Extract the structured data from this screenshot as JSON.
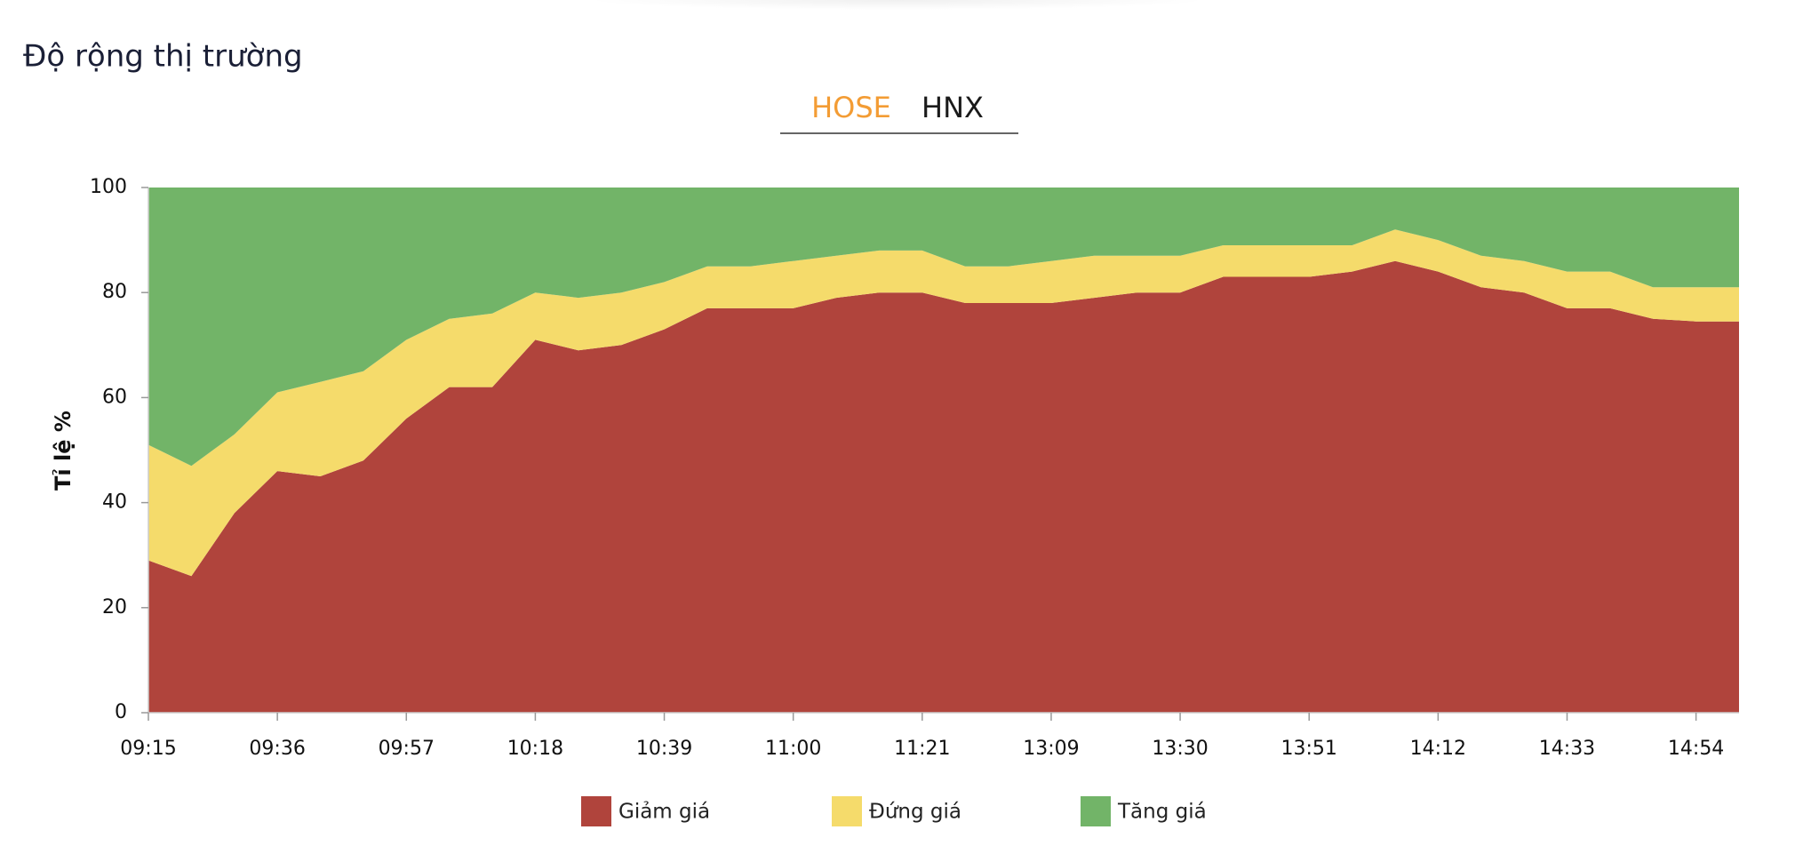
{
  "header": {
    "title": "Độ rộng thị trường"
  },
  "tabs": [
    {
      "label": "HOSE",
      "active": true
    },
    {
      "label": "HNX",
      "active": false
    }
  ],
  "chart_data": {
    "type": "stacked-area",
    "y_label": "Tỉ lệ %",
    "categories": [
      "09:15",
      null,
      null,
      "09:36",
      null,
      null,
      "09:57",
      null,
      null,
      "10:18",
      null,
      null,
      "10:39",
      null,
      null,
      "11:00",
      null,
      null,
      "11:21",
      null,
      null,
      "13:09",
      null,
      null,
      "13:30",
      null,
      null,
      "13:51",
      null,
      null,
      "14:12",
      null,
      null,
      "14:33",
      null,
      null,
      "14:54",
      null
    ],
    "series": [
      {
        "name": "Giảm giá",
        "color": "#b0443c",
        "values": [
          29,
          26,
          38,
          46,
          45,
          48,
          56,
          62,
          62,
          71,
          69,
          70,
          73,
          77,
          77,
          77,
          79,
          80,
          80,
          78,
          78,
          78,
          79,
          80,
          80,
          83,
          83,
          83,
          84,
          86,
          84,
          81,
          80,
          77,
          77,
          75,
          74.5,
          74.5
        ]
      },
      {
        "name": "Đứng giá",
        "color": "#f5db6b",
        "values": [
          22,
          21,
          15,
          15,
          18,
          17,
          15,
          13,
          14,
          9,
          10,
          10,
          9,
          8,
          8,
          9,
          8,
          8,
          8,
          7,
          7,
          8,
          8,
          7,
          7,
          6,
          6,
          6,
          5,
          6,
          6,
          6,
          6,
          7,
          7,
          6,
          6.5,
          6.5
        ]
      },
      {
        "name": "Tăng giá",
        "color": "#72b468",
        "values": [
          49,
          53,
          47,
          39,
          37,
          35,
          29,
          25,
          24,
          20,
          21,
          20,
          18,
          15,
          15,
          14,
          13,
          12,
          12,
          15,
          15,
          14,
          13,
          13,
          13,
          11,
          11,
          11,
          11,
          8,
          10,
          13,
          14,
          16,
          16,
          19,
          19,
          19
        ]
      }
    ],
    "ylim": [
      0,
      100
    ],
    "yticks": [
      0,
      20,
      40,
      60,
      80,
      100
    ],
    "legend": "bottom"
  }
}
